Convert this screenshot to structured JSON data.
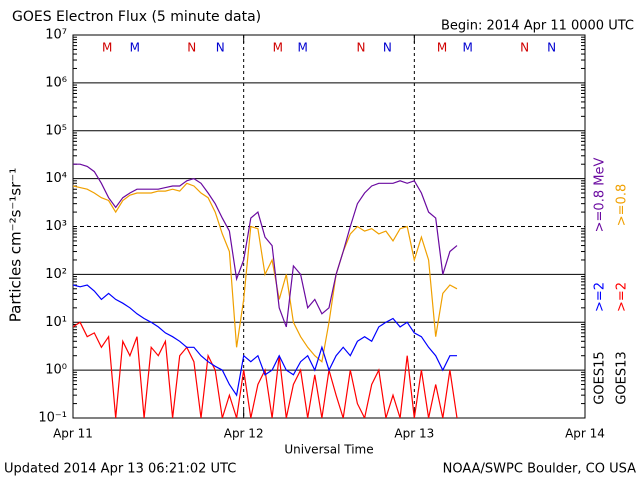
{
  "chart_data": {
    "type": "line",
    "title": "GOES Electron Flux (5 minute data)",
    "subtitle": "Begin: 2014 Apr 11 0000 UTC",
    "x_label": "Universal Time",
    "y_label": "Particles cm⁻²s⁻¹sr⁻¹",
    "footer_left": "Updated 2014 Apr 13 06:21:02 UTC",
    "footer_right": "NOAA/SWPC Boulder, CO USA",
    "log_y": true,
    "grid": true,
    "threshold": 1000,
    "xlim": [
      0,
      72
    ],
    "xticks": [
      {
        "value": 0,
        "label": "Apr 11"
      },
      {
        "value": 24,
        "label": "Apr 12"
      },
      {
        "value": 48,
        "label": "Apr 13"
      },
      {
        "value": 72,
        "label": "Apr 14"
      }
    ],
    "ylim": [
      0.1,
      10000000
    ],
    "yticks": [
      {
        "value": 0.1,
        "label": "10⁻¹"
      },
      {
        "value": 1,
        "label": "10⁰"
      },
      {
        "value": 10,
        "label": "10¹"
      },
      {
        "value": 100,
        "label": "10²"
      },
      {
        "value": 1000,
        "label": "10³"
      },
      {
        "value": 10000,
        "label": "10⁴"
      },
      {
        "value": 100000,
        "label": "10⁵"
      },
      {
        "value": 1000000,
        "label": "10⁶"
      },
      {
        "value": 10000000,
        "label": "10⁷"
      }
    ],
    "markers": [
      {
        "label": "M",
        "color": "#d00000",
        "x": 4.8
      },
      {
        "label": "M",
        "color": "#0000d0",
        "x": 8.7
      },
      {
        "label": "N",
        "color": "#d00000",
        "x": 16.7
      },
      {
        "label": "N",
        "color": "#0000d0",
        "x": 20.7
      },
      {
        "label": "M",
        "color": "#d00000",
        "x": 28.8
      },
      {
        "label": "M",
        "color": "#0000d0",
        "x": 32.3
      },
      {
        "label": "N",
        "color": "#d00000",
        "x": 40.5
      },
      {
        "label": "N",
        "color": "#0000d0",
        "x": 44.2
      },
      {
        "label": "M",
        "color": "#d00000",
        "x": 51.9
      },
      {
        "label": "M",
        "color": "#0000d0",
        "x": 55.5
      },
      {
        "label": "N",
        "color": "#d00000",
        "x": 63.5
      },
      {
        "label": "N",
        "color": "#0000d0",
        "x": 67.3
      }
    ],
    "satellites": [
      "GOES15",
      "GOES13"
    ],
    "x": [
      0,
      1,
      2,
      3,
      4,
      5,
      6,
      7,
      8,
      9,
      10,
      11,
      12,
      13,
      14,
      15,
      16,
      17,
      18,
      19,
      20,
      21,
      22,
      23,
      24,
      25,
      26,
      27,
      28,
      29,
      30,
      31,
      32,
      33,
      34,
      35,
      36,
      37,
      38,
      39,
      40,
      41,
      42,
      43,
      44,
      45,
      46,
      47,
      48,
      49,
      50,
      51,
      52,
      53,
      54
    ],
    "series": [
      {
        "name": ">=0.8",
        "color": "#f0a000",
        "values": [
          7000,
          6500,
          6000,
          5000,
          4000,
          3500,
          2000,
          3500,
          4500,
          5000,
          5000,
          5000,
          5500,
          5500,
          6000,
          5500,
          8000,
          7000,
          5000,
          4000,
          2000,
          700,
          300,
          3,
          30,
          1000,
          900,
          100,
          200,
          30,
          100,
          10,
          5,
          3,
          2,
          1.5,
          10,
          100,
          300,
          700,
          1000,
          800,
          900,
          700,
          800,
          500,
          900,
          1000,
          200,
          600,
          200,
          5,
          40,
          60,
          50
        ]
      },
      {
        "name": ">=0.8 MeV",
        "color": "#6a0aa0",
        "values": [
          20000,
          20000,
          18000,
          14000,
          8000,
          4000,
          2500,
          4000,
          5000,
          6000,
          6000,
          6000,
          6000,
          6500,
          7000,
          7000,
          9000,
          10000,
          8000,
          5000,
          3000,
          1500,
          800,
          80,
          200,
          1500,
          2000,
          600,
          400,
          20,
          8,
          150,
          100,
          20,
          30,
          15,
          20,
          100,
          300,
          1000,
          3000,
          5000,
          7000,
          8000,
          8000,
          8000,
          9000,
          8000,
          9000,
          5000,
          2000,
          1500,
          100,
          300,
          400
        ]
      },
      {
        "name": ">=2",
        "color": "#ff0000",
        "values": [
          8,
          10,
          5,
          6,
          3,
          5,
          0.1,
          4,
          2,
          5,
          0.1,
          3,
          2,
          4,
          0.1,
          2,
          3,
          1.5,
          0.1,
          2,
          1,
          0.1,
          0.3,
          0.1,
          1,
          0.1,
          0.5,
          1,
          0.1,
          2,
          0.1,
          0.5,
          1,
          0.1,
          0.8,
          0.1,
          1,
          0.3,
          0.1,
          1,
          0.2,
          0.1,
          0.5,
          1,
          0.1,
          0.3,
          0.1,
          2,
          0.1,
          1,
          0.1,
          0.5,
          0.1,
          1,
          0.1
        ]
      },
      {
        "name": ">=2",
        "color": "#0000ff",
        "values": [
          60,
          55,
          60,
          45,
          30,
          40,
          30,
          25,
          20,
          15,
          12,
          10,
          8,
          6,
          5,
          4,
          3,
          3,
          2,
          1.5,
          1.2,
          1,
          0.5,
          0.3,
          2,
          1.5,
          2,
          0.8,
          1,
          2,
          1,
          0.8,
          1.5,
          2,
          1,
          3,
          1,
          2,
          3,
          2,
          4,
          5,
          4,
          8,
          10,
          12,
          8,
          10,
          6,
          5,
          3,
          2,
          1,
          2,
          2
        ]
      }
    ]
  }
}
